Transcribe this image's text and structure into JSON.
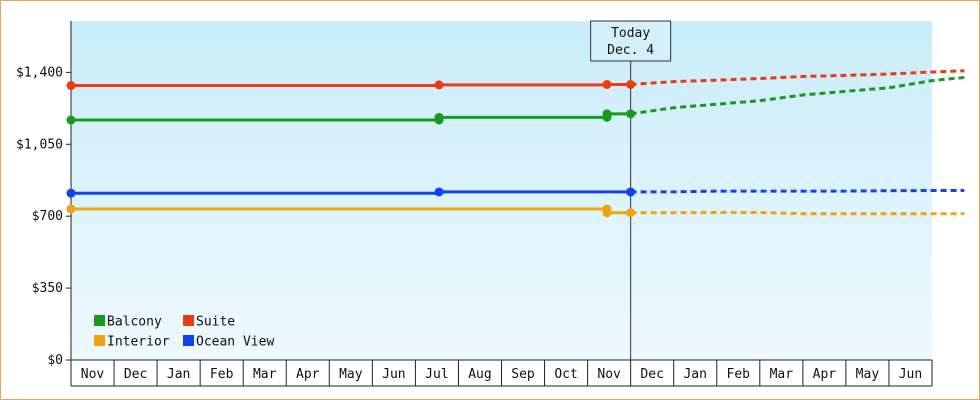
{
  "chart_data": {
    "type": "line",
    "y_tick_labels": [
      "$0",
      "$350",
      "$700",
      "$1,050",
      "$1,400"
    ],
    "y_ticks": [
      0,
      350,
      700,
      1050,
      1400
    ],
    "ylim": [
      0,
      1650
    ],
    "x_tick_labels": [
      "Nov",
      "Dec",
      "Jan",
      "Feb",
      "Mar",
      "Apr",
      "May",
      "Jun",
      "Jul",
      "Aug",
      "Sep",
      "Oct",
      "Nov",
      "Dec",
      "Jan",
      "Feb",
      "Mar",
      "Apr",
      "May",
      "Jun"
    ],
    "today_label_line1": "Today",
    "today_label_line2": "Dec. 4",
    "today_x": 13.0,
    "grid": false,
    "legend_placement": "bottom-left",
    "series": [
      {
        "name": "Balcony",
        "color": "#1a9a1a",
        "historical": [
          [
            0.0,
            1168
          ],
          [
            8.55,
            1168
          ],
          [
            8.55,
            1181
          ],
          [
            12.45,
            1181
          ],
          [
            12.45,
            1198
          ],
          [
            13.0,
            1198
          ]
        ],
        "markers": [
          [
            0.0,
            1168
          ],
          [
            8.55,
            1168
          ],
          [
            8.55,
            1181
          ],
          [
            12.45,
            1181
          ],
          [
            12.45,
            1198
          ],
          [
            13.0,
            1198
          ]
        ],
        "forecast": [
          [
            13.0,
            1198
          ],
          [
            14.0,
            1228
          ],
          [
            15.0,
            1245
          ],
          [
            16.0,
            1262
          ],
          [
            17.0,
            1290
          ],
          [
            18.0,
            1308
          ],
          [
            19.0,
            1325
          ],
          [
            20.0,
            1360
          ],
          [
            20.75,
            1375
          ]
        ]
      },
      {
        "name": "Suite",
        "color": "#ee3a12",
        "historical": [
          [
            0.0,
            1336
          ],
          [
            8.55,
            1336
          ],
          [
            8.55,
            1339
          ],
          [
            12.45,
            1339
          ],
          [
            12.45,
            1341
          ],
          [
            13.0,
            1341
          ]
        ],
        "markers": [
          [
            0.0,
            1336
          ],
          [
            8.55,
            1339
          ],
          [
            12.45,
            1341
          ],
          [
            13.0,
            1341
          ]
        ],
        "forecast": [
          [
            13.0,
            1341
          ],
          [
            14.0,
            1355
          ],
          [
            15.0,
            1362
          ],
          [
            16.0,
            1370
          ],
          [
            17.0,
            1380
          ],
          [
            18.0,
            1385
          ],
          [
            19.0,
            1392
          ],
          [
            20.0,
            1402
          ],
          [
            20.75,
            1408
          ]
        ]
      },
      {
        "name": "Interior",
        "color": "#f2a20f",
        "historical": [
          [
            0.0,
            735
          ],
          [
            12.45,
            735
          ],
          [
            12.45,
            717
          ],
          [
            13.0,
            717
          ]
        ],
        "markers": [
          [
            0.0,
            735
          ],
          [
            12.45,
            735
          ],
          [
            12.45,
            717
          ],
          [
            13.0,
            717
          ]
        ],
        "forecast": [
          [
            13.0,
            717
          ],
          [
            14.0,
            717
          ],
          [
            15.0,
            718
          ],
          [
            16.0,
            718
          ],
          [
            17.0,
            712
          ],
          [
            18.0,
            712
          ],
          [
            19.0,
            712
          ],
          [
            20.0,
            712
          ],
          [
            20.75,
            712
          ]
        ]
      },
      {
        "name": "Ocean View",
        "color": "#1242ee",
        "historical": [
          [
            0.0,
            812
          ],
          [
            8.55,
            812
          ],
          [
            8.55,
            818
          ],
          [
            13.0,
            818
          ]
        ],
        "markers": [
          [
            0.0,
            812
          ],
          [
            8.55,
            818
          ],
          [
            13.0,
            818
          ]
        ],
        "forecast": [
          [
            13.0,
            818
          ],
          [
            14.0,
            818
          ],
          [
            15.0,
            822
          ],
          [
            16.0,
            822
          ],
          [
            17.0,
            822
          ],
          [
            18.0,
            822
          ],
          [
            19.0,
            824
          ],
          [
            20.0,
            825
          ],
          [
            20.75,
            825
          ]
        ]
      }
    ],
    "legend": [
      {
        "label": "Balcony",
        "color": "#1a9a1a"
      },
      {
        "label": "Suite",
        "color": "#ee3a12"
      },
      {
        "label": "Interior",
        "color": "#f2a20f"
      },
      {
        "label": "Ocean View",
        "color": "#1242ee"
      }
    ]
  }
}
